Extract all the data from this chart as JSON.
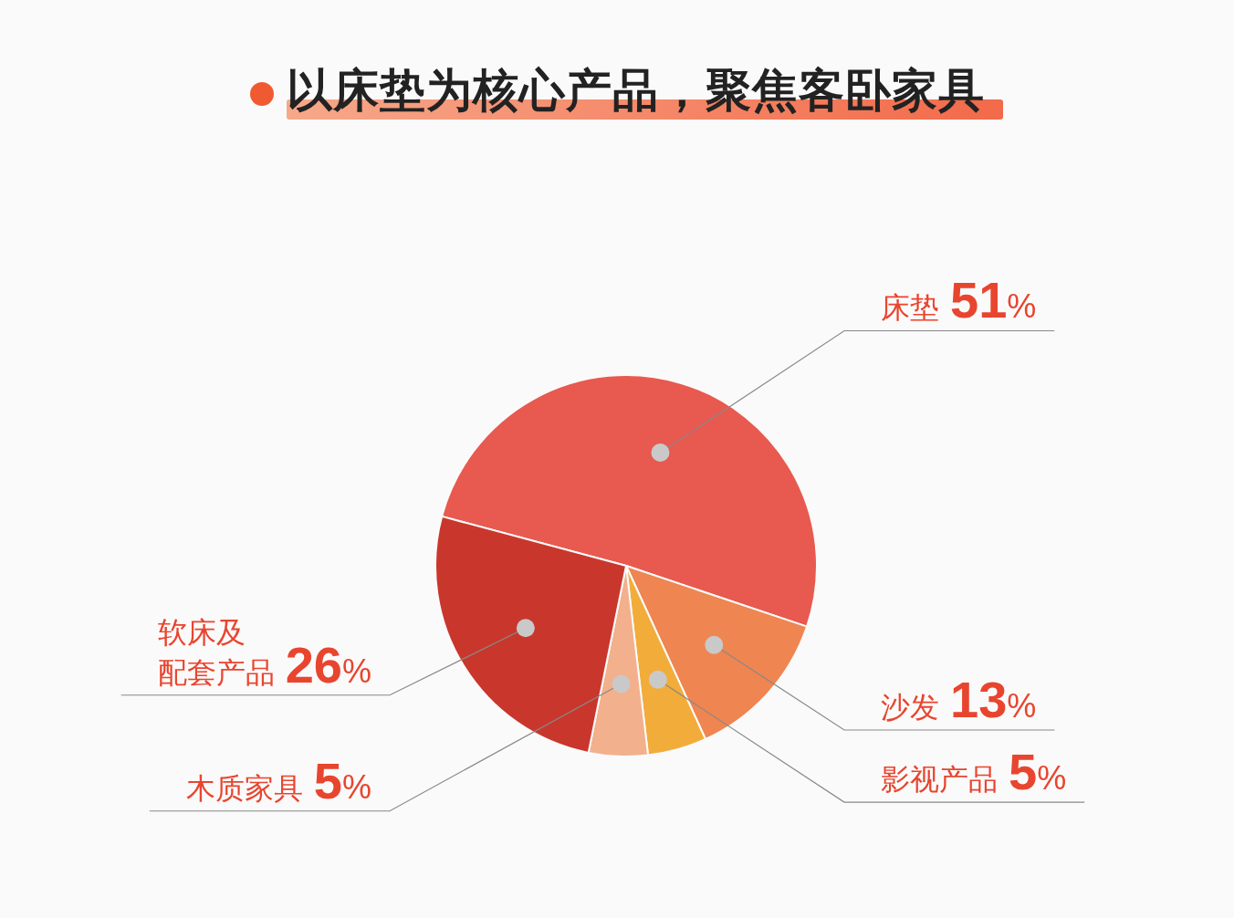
{
  "chart_data": {
    "type": "pie",
    "title": "以床垫为核心产品，聚焦客卧家具",
    "categories": [
      "床垫",
      "沙发",
      "影视产品",
      "木质家具",
      "软床及配套产品"
    ],
    "values": [
      51,
      13,
      5,
      5,
      26
    ],
    "value_labels": [
      "51%",
      "13%",
      "5%",
      "5%",
      "26%"
    ],
    "colors": [
      "#e8594f",
      "#ef8550",
      "#f2ac3a",
      "#f2b08c",
      "#c9372c"
    ],
    "legend": false
  }
}
